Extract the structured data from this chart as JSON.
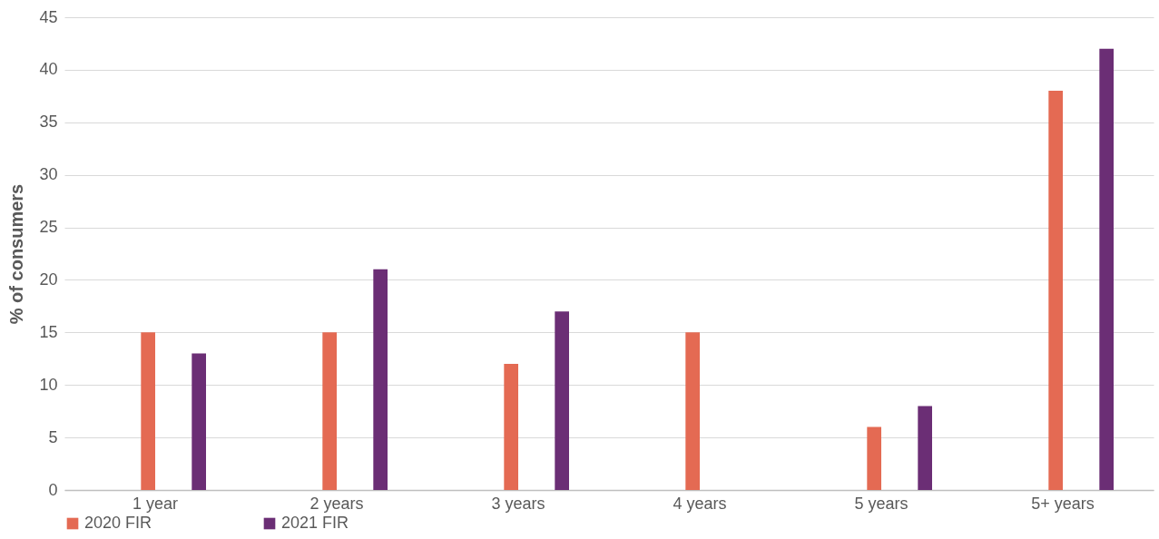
{
  "chart_data": {
    "type": "bar",
    "ylabel": "% of consumers",
    "categories": [
      "1 year",
      "2 years",
      "3 years",
      "4 years",
      "5 years",
      "5+ years"
    ],
    "series": [
      {
        "name": "2020 FIR",
        "color": "#e46a53",
        "values": [
          15,
          15,
          12,
          15,
          6,
          38
        ]
      },
      {
        "name": "2021 FIR",
        "color": "#6b2e75",
        "values": [
          13,
          21,
          17,
          0,
          8,
          42
        ]
      }
    ],
    "ylim": [
      0,
      45
    ],
    "yticks": [
      0,
      5,
      10,
      15,
      20,
      25,
      30,
      35,
      40,
      45
    ],
    "grid": "y",
    "legend": "bottom"
  }
}
